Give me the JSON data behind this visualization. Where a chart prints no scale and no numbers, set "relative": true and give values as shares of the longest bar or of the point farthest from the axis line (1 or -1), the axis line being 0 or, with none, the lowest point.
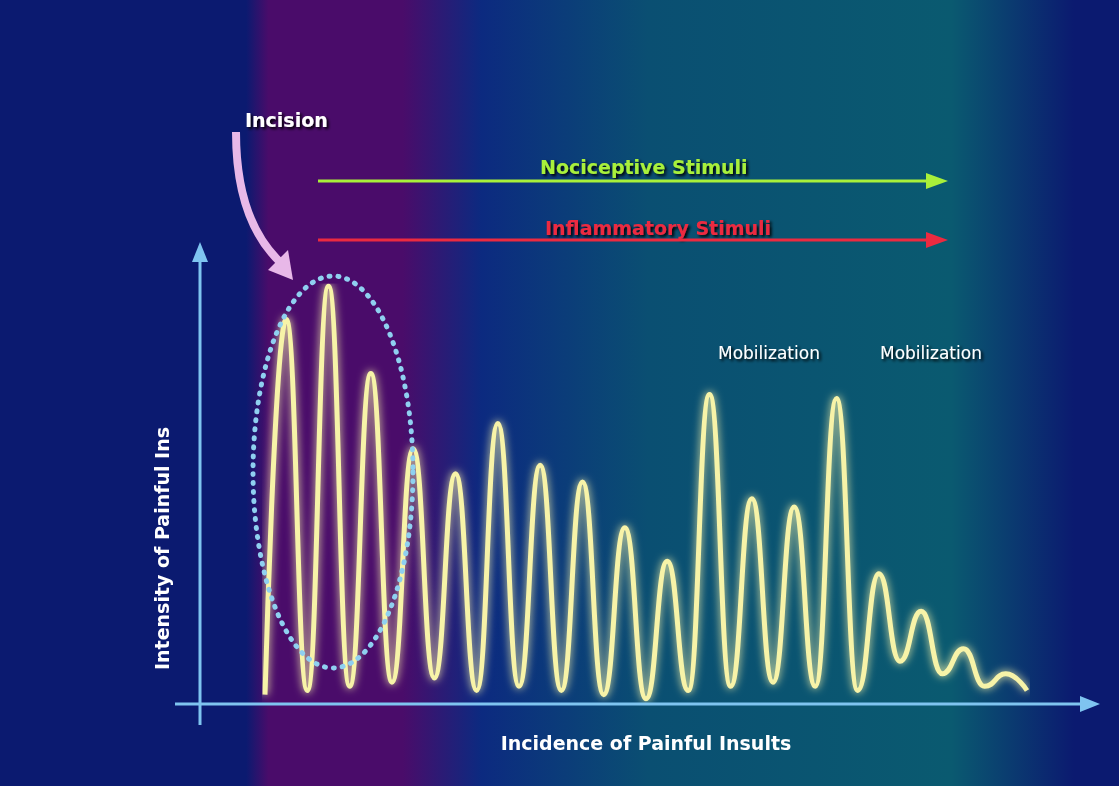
{
  "chart_data": {
    "type": "line",
    "relative": true,
    "xlabel": "Incidence of Painful Insults",
    "ylabel": "Intensity of Painful Ins",
    "annotations": [
      "Incision",
      "Nociceptive Stimuli",
      "Inflammatory Stimuli",
      "Mobilization",
      "Mobilization"
    ],
    "categories": [
      null,
      null,
      null,
      null,
      null,
      null,
      null,
      null,
      null,
      null,
      null,
      null,
      null,
      null,
      null,
      null,
      null,
      null,
      null,
      null,
      null,
      null,
      null,
      null,
      null,
      null,
      null,
      null,
      null,
      null,
      null,
      null,
      null,
      null,
      null,
      null,
      null
    ],
    "series": [
      {
        "color": "#f7f3a8",
        "values": [
          0.02,
          0.92,
          0.03,
          1,
          0.04,
          0.79,
          0.05,
          0.61,
          0.06,
          0.55,
          0.03,
          0.67,
          0.04,
          0.57,
          0.03,
          0.53,
          0.02,
          0.42,
          0.01,
          0.34,
          0.03,
          0.74,
          0.04,
          0.49,
          0.05,
          0.47,
          0.04,
          0.73,
          0.03,
          0.31,
          0.1,
          0.22,
          0.07,
          0.13,
          0.04,
          0.07,
          0.03
        ]
      }
    ],
    "marker": "none",
    "line_style": "solid"
  }
}
